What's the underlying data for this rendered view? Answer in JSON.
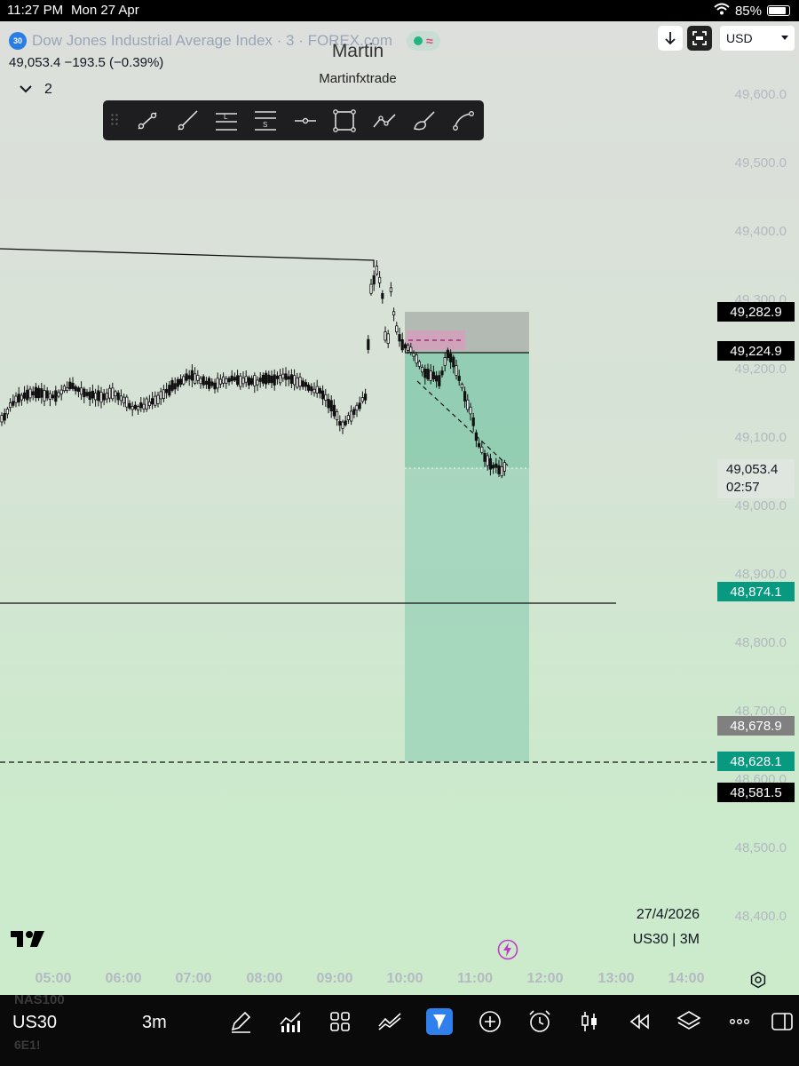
{
  "status_bar": {
    "time": "11:27 PM",
    "date": "Mon 27 Apr",
    "battery": "85%"
  },
  "header": {
    "symbol_badge": "30",
    "symbol_title": "Dow Jones Industrial Average Index · 3 · FOREX.com",
    "quote": "49,053.4  −193.5 (−0.39%)",
    "layers_count": "2",
    "watermark_title": "Martin",
    "watermark_author": "Martinfxtrade",
    "currency": "USD"
  },
  "toolbar_tools": [
    "trend-line",
    "ray",
    "long-position",
    "short-position",
    "horizontal-ray",
    "rectangle",
    "path",
    "brush",
    "curve"
  ],
  "price_axis": {
    "ticks": [
      "49,600.0",
      "49,500.0",
      "49,400.0",
      "49,300.0",
      "49,200.0",
      "49,100.0",
      "49,000.0",
      "48,900.0",
      "48,800.0",
      "48,700.0",
      "48,600.0",
      "48,500.0",
      "48,400.0"
    ],
    "labels": [
      {
        "text": "49,282.9",
        "color": "#000000"
      },
      {
        "text": "49,224.9",
        "color": "#000000"
      },
      {
        "text": "48,874.1",
        "color": "#089981"
      },
      {
        "text": "48,678.9",
        "color": "#808080"
      },
      {
        "text": "48,628.1",
        "color": "#089981"
      },
      {
        "text": "48,581.5",
        "color": "#000000"
      }
    ],
    "last_price": "49,053.4",
    "countdown": "02:57"
  },
  "time_axis": {
    "ticks": [
      "05:00",
      "06:00",
      "07:00",
      "08:00",
      "09:00",
      "10:00",
      "11:00",
      "12:00",
      "13:00",
      "14:00"
    ]
  },
  "chart_info": {
    "date": "27/4/2026",
    "interval": "US30 | 3M"
  },
  "bottom_bar": {
    "symbol_prev": "NAS100",
    "symbol_current": "US30",
    "symbol_next": "6E1!",
    "interval": "3m"
  },
  "colors": {
    "accent": "#2f80ed",
    "target_zone": "#8fd0b4",
    "stop_zone": "#a9a9a9",
    "teal_label": "#089981"
  }
}
